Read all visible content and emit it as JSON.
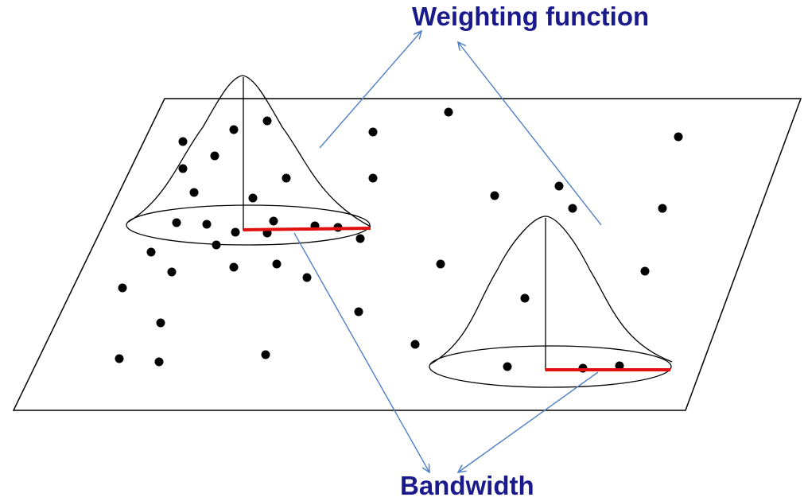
{
  "labels": {
    "weighting_function": "Weighting function",
    "bandwidth": "Bandwidth"
  },
  "colors": {
    "label_text": "#1a1a8c",
    "arrow": "#4f7fc4",
    "bandwidth_line": "#e01010",
    "outline": "#000000",
    "points": "#000000"
  }
}
